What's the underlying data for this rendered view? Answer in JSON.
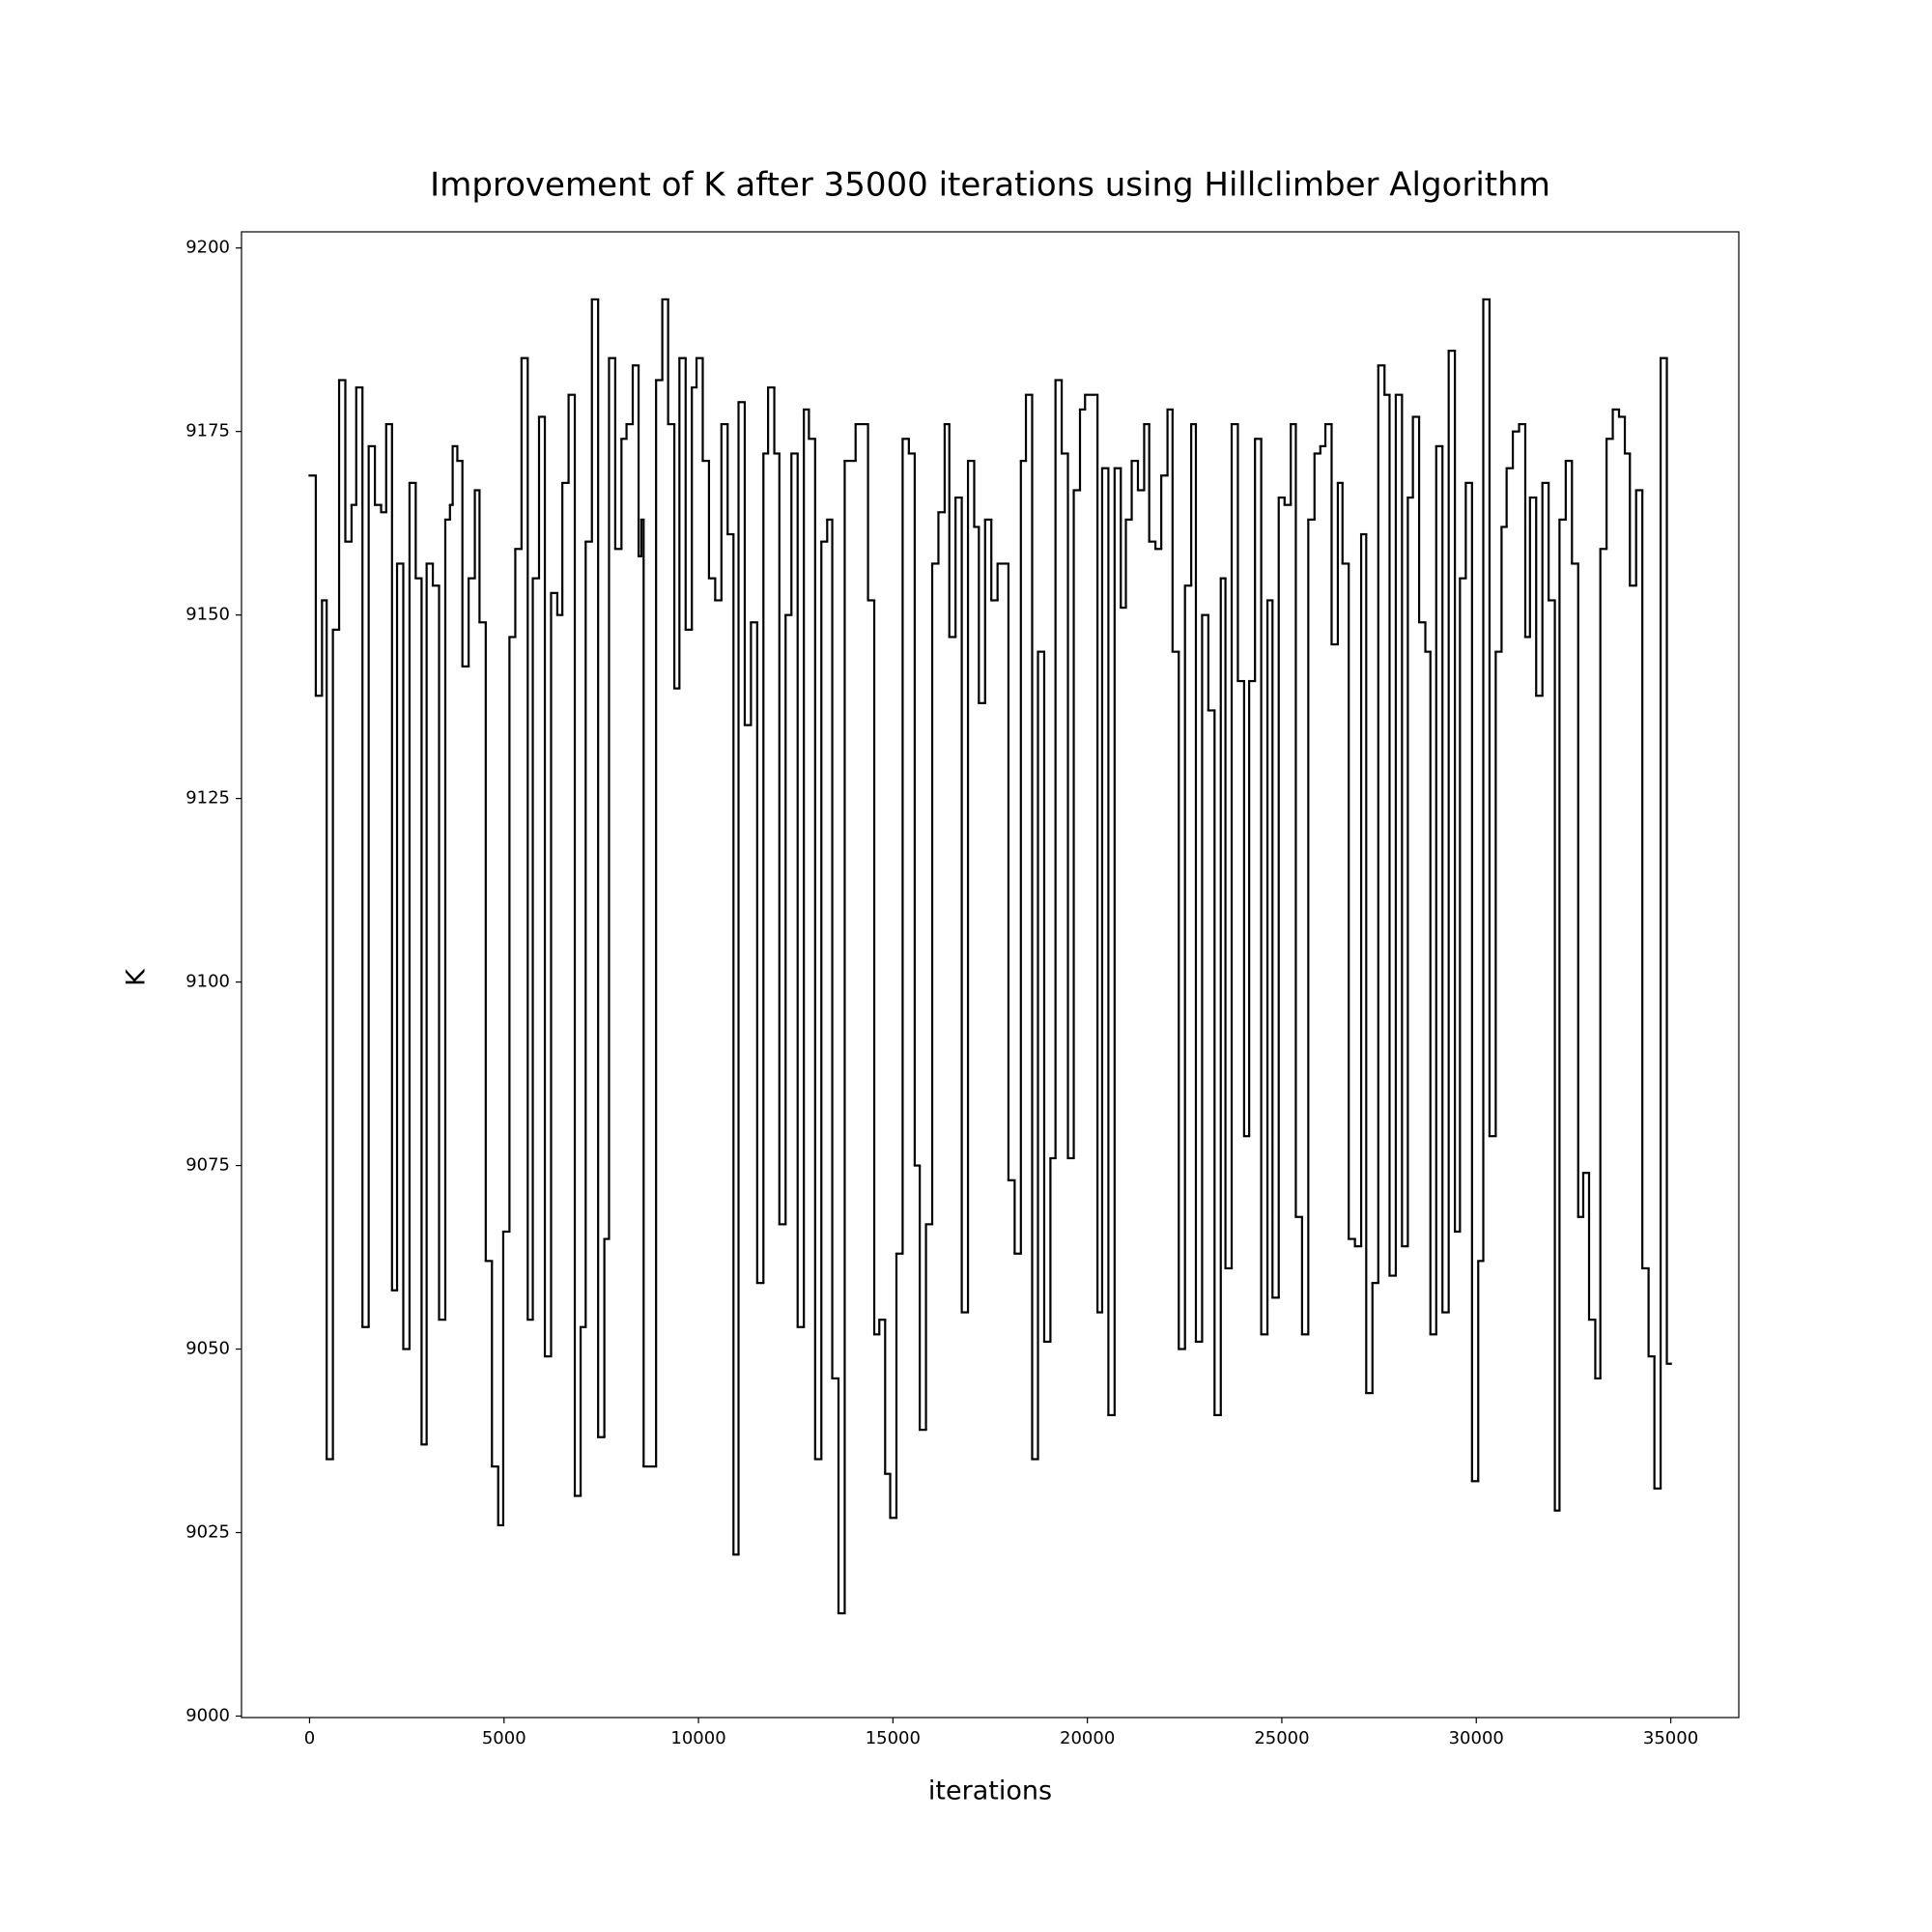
{
  "chart_data": {
    "type": "line",
    "step": "post",
    "title": "Improvement of K after 35000 iterations using Hillclimber Algorithm",
    "xlabel": "iterations",
    "ylabel": "K",
    "color": "#000000",
    "grid": false,
    "xlim": [
      -1750,
      36750
    ],
    "ylim": [
      8999.8,
      9202.2
    ],
    "xticks": [
      0,
      5000,
      10000,
      15000,
      20000,
      25000,
      30000,
      35000
    ],
    "yticks": [
      9000,
      9025,
      9050,
      9075,
      9100,
      9125,
      9150,
      9175,
      9200
    ],
    "x": [
      0,
      160,
      320,
      440,
      600,
      760,
      920,
      1080,
      1200,
      1360,
      1520,
      1680,
      1840,
      1970,
      2120,
      2250,
      2410,
      2570,
      2730,
      2880,
      3010,
      3170,
      3330,
      3490,
      3610,
      3680,
      3800,
      3930,
      4090,
      4250,
      4370,
      4530,
      4690,
      4850,
      4980,
      5140,
      5290,
      5450,
      5610,
      5740,
      5900,
      6050,
      6210,
      6370,
      6500,
      6660,
      6820,
      6970,
      7100,
      7260,
      7420,
      7580,
      7700,
      7860,
      8020,
      8150,
      8310,
      8460,
      8530,
      8590,
      8910,
      9070,
      9220,
      9380,
      9510,
      9670,
      9830,
      9950,
      10110,
      10270,
      10430,
      10590,
      10750,
      10900,
      11030,
      11190,
      11350,
      11510,
      11670,
      11790,
      11950,
      12080,
      12240,
      12390,
      12550,
      12710,
      12840,
      13000,
      13160,
      13310,
      13440,
      13600,
      13760,
      14040,
      14360,
      14520,
      14650,
      14800,
      14930,
      15090,
      15250,
      15410,
      15560,
      15690,
      15850,
      16010,
      16170,
      16330,
      16450,
      16610,
      16770,
      16930,
      17090,
      17210,
      17370,
      17530,
      17690,
      17970,
      18130,
      18290,
      18420,
      18580,
      18730,
      18890,
      19050,
      19180,
      19340,
      19500,
      19650,
      19810,
      19940,
      20260,
      20380,
      20540,
      20700,
      20860,
      20990,
      21140,
      21300,
      21460,
      21590,
      21750,
      21900,
      22060,
      22190,
      22350,
      22510,
      22670,
      22790,
      22950,
      23110,
      23270,
      23430,
      23550,
      23710,
      23870,
      24030,
      24160,
      24310,
      24470,
      24630,
      24760,
      24920,
      25070,
      25230,
      25360,
      25520,
      25680,
      25840,
      25990,
      26120,
      26280,
      26440,
      26560,
      26720,
      26880,
      27040,
      27170,
      27330,
      27480,
      27640,
      27770,
      27930,
      28090,
      28240,
      28370,
      28530,
      28690,
      28820,
      28970,
      29130,
      29290,
      29450,
      29580,
      29730,
      29890,
      30050,
      30180,
      30340,
      30500,
      30650,
      30780,
      30940,
      31100,
      31260,
      31380,
      31540,
      31700,
      31860,
      32020,
      32140,
      32300,
      32460,
      32620,
      32750,
      32900,
      33060,
      33190,
      33350,
      33510,
      33670,
      33820,
      33950,
      34110,
      34270,
      34430,
      34580,
      34740,
      34900,
      35000
    ],
    "values": [
      9169,
      9139,
      9152,
      9035,
      9148,
      9182,
      9160,
      9165,
      9181,
      9053,
      9173,
      9165,
      9164,
      9176,
      9058,
      9157,
      9050,
      9168,
      9155,
      9037,
      9157,
      9154,
      9054,
      9163,
      9165,
      9173,
      9171,
      9143,
      9155,
      9167,
      9149,
      9062,
      9034,
      9026,
      9066,
      9147,
      9159,
      9185,
      9054,
      9155,
      9177,
      9049,
      9153,
      9150,
      9168,
      9180,
      9030,
      9053,
      9160,
      9193,
      9038,
      9065,
      9185,
      9159,
      9174,
      9176,
      9184,
      9158,
      9163,
      9034,
      9182,
      9193,
      9176,
      9140,
      9185,
      9148,
      9181,
      9185,
      9171,
      9155,
      9152,
      9176,
      9161,
      9022,
      9179,
      9135,
      9149,
      9059,
      9172,
      9181,
      9172,
      9067,
      9150,
      9172,
      9053,
      9178,
      9174,
      9035,
      9160,
      9163,
      9046,
      9014,
      9171,
      9176,
      9152,
      9052,
      9054,
      9033,
      9027,
      9063,
      9174,
      9172,
      9075,
      9039,
      9067,
      9157,
      9164,
      9176,
      9147,
      9166,
      9055,
      9171,
      9162,
      9138,
      9163,
      9152,
      9157,
      9073,
      9063,
      9171,
      9180,
      9035,
      9145,
      9051,
      9076,
      9182,
      9172,
      9076,
      9167,
      9178,
      9180,
      9055,
      9170,
      9041,
      9170,
      9151,
      9163,
      9171,
      9167,
      9176,
      9160,
      9159,
      9169,
      9178,
      9145,
      9050,
      9154,
      9176,
      9051,
      9150,
      9137,
      9041,
      9155,
      9061,
      9176,
      9141,
      9079,
      9141,
      9174,
      9052,
      9152,
      9057,
      9166,
      9165,
      9176,
      9068,
      9052,
      9163,
      9172,
      9173,
      9176,
      9146,
      9168,
      9157,
      9065,
      9064,
      9161,
      9044,
      9059,
      9184,
      9180,
      9060,
      9180,
      9064,
      9166,
      9177,
      9149,
      9145,
      9052,
      9173,
      9055,
      9186,
      9066,
      9155,
      9168,
      9032,
      9062,
      9193,
      9079,
      9145,
      9162,
      9170,
      9175,
      9176,
      9147,
      9166,
      9139,
      9168,
      9152,
      9028,
      9163,
      9171,
      9157,
      9068,
      9074,
      9054,
      9046,
      9159,
      9174,
      9178,
      9177,
      9172,
      9154,
      9167,
      9061,
      9049,
      9031,
      9185,
      9048,
      9048
    ]
  }
}
